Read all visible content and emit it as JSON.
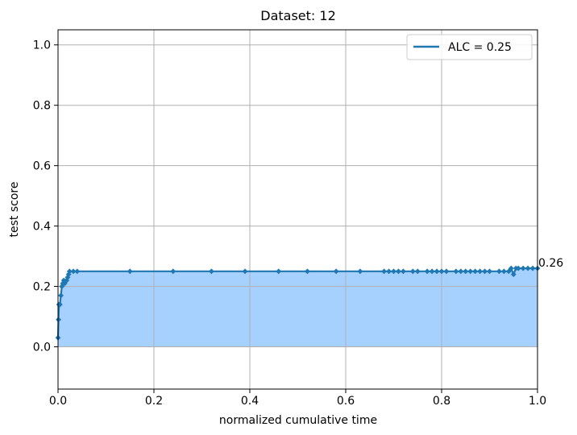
{
  "chart_data": {
    "type": "area",
    "title": "Dataset: 12",
    "xlabel": "normalized cumulative time",
    "ylabel": "test score",
    "xlim": [
      0.0,
      1.0
    ],
    "ylim": [
      -0.14,
      1.05
    ],
    "xticks": [
      0.0,
      0.2,
      0.4,
      0.6,
      0.8,
      1.0
    ],
    "xtick_labels": [
      "0.0",
      "0.2",
      "0.4",
      "0.6",
      "0.8",
      "1.0"
    ],
    "yticks": [
      0.0,
      0.2,
      0.4,
      0.6,
      0.8,
      1.0
    ],
    "ytick_labels": [
      "0.0",
      "0.2",
      "0.4",
      "0.6",
      "0.8",
      "1.0"
    ],
    "grid": true,
    "legend": {
      "position": "top-right",
      "entries": [
        "ALC = 0.25"
      ]
    },
    "colors": {
      "line": "#1f77b4",
      "fill": "#a6d1ff",
      "grid": "#b0b0b0"
    },
    "series": [
      {
        "name": "ALC = 0.25",
        "x": [
          0.0,
          0.001,
          0.002,
          0.004,
          0.006,
          0.008,
          0.01,
          0.012,
          0.014,
          0.018,
          0.02,
          0.022,
          0.024,
          0.032,
          0.04,
          0.15,
          0.24,
          0.32,
          0.39,
          0.46,
          0.52,
          0.58,
          0.63,
          0.68,
          0.69,
          0.7,
          0.71,
          0.72,
          0.74,
          0.75,
          0.77,
          0.78,
          0.79,
          0.8,
          0.81,
          0.83,
          0.84,
          0.85,
          0.86,
          0.87,
          0.88,
          0.89,
          0.9,
          0.92,
          0.93,
          0.94,
          0.945,
          0.95,
          0.955,
          0.96,
          0.97,
          0.98,
          0.99,
          1.0
        ],
        "y": [
          0.03,
          0.09,
          0.14,
          0.14,
          0.17,
          0.2,
          0.21,
          0.22,
          0.21,
          0.22,
          0.23,
          0.24,
          0.25,
          0.25,
          0.25,
          0.25,
          0.25,
          0.25,
          0.25,
          0.25,
          0.25,
          0.25,
          0.25,
          0.25,
          0.25,
          0.25,
          0.25,
          0.25,
          0.25,
          0.25,
          0.25,
          0.25,
          0.25,
          0.25,
          0.25,
          0.25,
          0.25,
          0.25,
          0.25,
          0.25,
          0.25,
          0.25,
          0.25,
          0.25,
          0.25,
          0.25,
          0.26,
          0.24,
          0.26,
          0.26,
          0.26,
          0.26,
          0.26,
          0.26
        ],
        "fill_to": 0.0
      }
    ],
    "annotations": [
      {
        "text": "0.26",
        "x": 1.0,
        "y": 0.26
      }
    ]
  }
}
